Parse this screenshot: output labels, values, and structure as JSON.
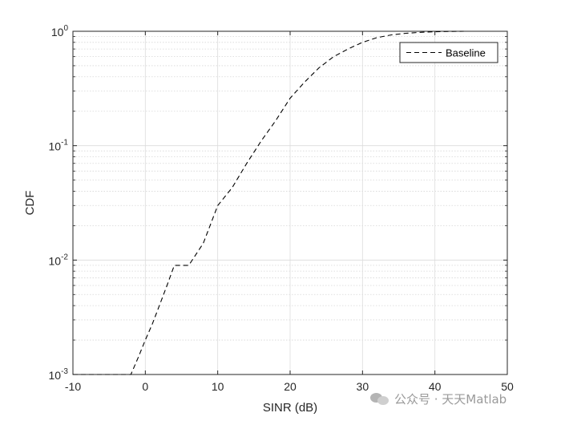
{
  "chart_data": {
    "type": "line",
    "title": "",
    "xlabel": "SINR (dB)",
    "ylabel": "CDF",
    "xlim": [
      -10,
      50
    ],
    "ylim": [
      0.001,
      1
    ],
    "yscale": "log",
    "xticks": [
      -10,
      0,
      10,
      20,
      30,
      40,
      50
    ],
    "xtick_labels": [
      "-10",
      "0",
      "10",
      "20",
      "30",
      "40",
      "50"
    ],
    "yticks": [
      0.001,
      0.01,
      0.1,
      1
    ],
    "ytick_labels": [
      {
        "base": "10",
        "exp": "-3"
      },
      {
        "base": "10",
        "exp": "-2"
      },
      {
        "base": "10",
        "exp": "-1"
      },
      {
        "base": "10",
        "exp": "0"
      }
    ],
    "grid": true,
    "minor_grid": true,
    "legend_position": "top-right",
    "series": [
      {
        "name": "Baseline",
        "line_style": "dashed",
        "color": "#000000",
        "x": [
          -10,
          -2,
          -1,
          0,
          1,
          2,
          3,
          4,
          6,
          8,
          10,
          12,
          14,
          16,
          18,
          20,
          22,
          24,
          26,
          28,
          30,
          32,
          34,
          36,
          38,
          40,
          42,
          44
        ],
        "y": [
          0.001,
          0.001,
          0.0014,
          0.002,
          0.0028,
          0.0041,
          0.006,
          0.009,
          0.009,
          0.014,
          0.03,
          0.043,
          0.07,
          0.11,
          0.165,
          0.26,
          0.36,
          0.48,
          0.6,
          0.7,
          0.8,
          0.88,
          0.93,
          0.96,
          0.98,
          0.99,
          0.997,
          1.0
        ]
      }
    ]
  },
  "watermark": {
    "text": "公众号 · 天天Matlab",
    "icon": "wechat-icon"
  }
}
